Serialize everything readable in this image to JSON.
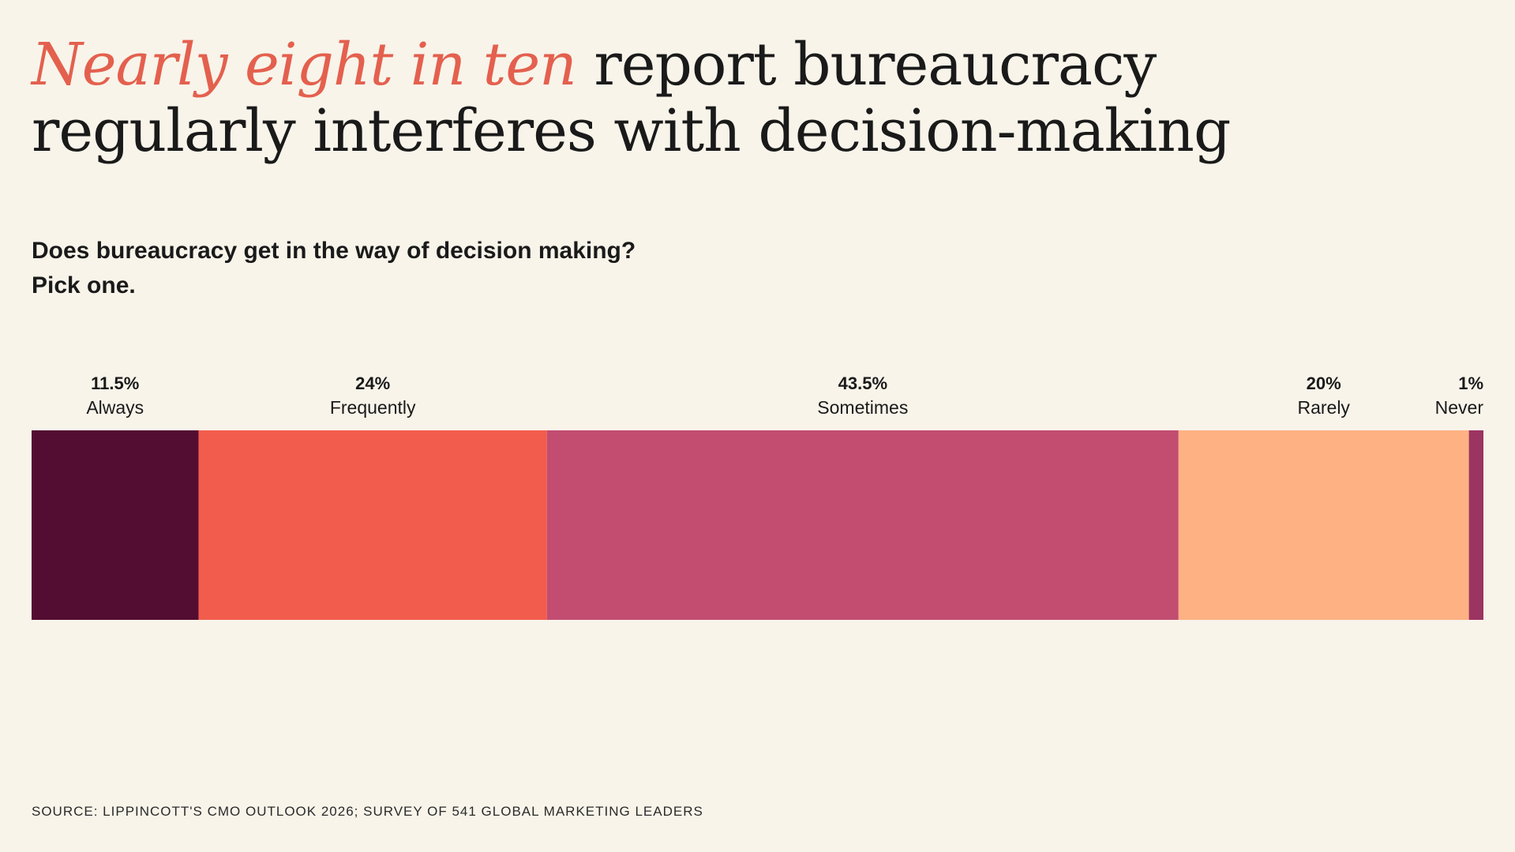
{
  "headline": {
    "highlight": "Nearly eight in ten",
    "rest": " report bureaucracy regularly interferes with decision-making"
  },
  "question": {
    "line1": "Does bureaucracy get in the way of decision making?",
    "line2": "Pick one."
  },
  "chart_data": {
    "type": "bar",
    "orientation": "horizontal-stacked",
    "categories": [
      "Always",
      "Frequently",
      "Sometimes",
      "Rarely",
      "Never"
    ],
    "values": [
      11.5,
      24,
      43.5,
      20,
      1
    ],
    "value_labels": [
      "11.5%",
      "24%",
      "43.5%",
      "20%",
      "1%"
    ],
    "colors": [
      "#540d32",
      "#f25c4d",
      "#c24d71",
      "#feb183",
      "#9c3461"
    ],
    "title": "",
    "xlabel": "",
    "ylabel": "",
    "grid": false
  },
  "source": "SOURCE: LIPPINCOTT'S CMO OUTLOOK 2026; SURVEY OF 541 GLOBAL MARKETING LEADERS",
  "colors": {
    "background": "#f8f4ea",
    "text": "#1a1a1a",
    "accent": "#e4604e"
  }
}
